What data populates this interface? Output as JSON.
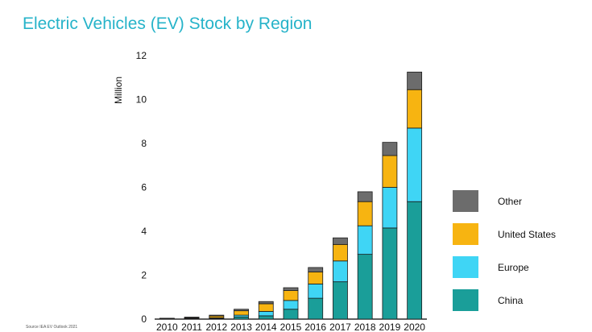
{
  "title": "Electric Vehicles (EV) Stock by Region",
  "source": "Source IEA EV Outlook 2021",
  "colors": {
    "China": "#1a9e99",
    "Europe": "#3fd5f5",
    "United States": "#f7b411",
    "Other": "#6c6c6c"
  },
  "chart_data": {
    "type": "bar",
    "stacked": true,
    "categories": [
      "2010",
      "2011",
      "2012",
      "2013",
      "2014",
      "2015",
      "2016",
      "2017",
      "2018",
      "2019",
      "2020"
    ],
    "series": [
      {
        "name": "China",
        "values": [
          0.01,
          0.02,
          0.03,
          0.1,
          0.15,
          0.45,
          0.95,
          1.7,
          2.95,
          4.15,
          5.35
        ]
      },
      {
        "name": "Europe",
        "values": [
          0.01,
          0.02,
          0.03,
          0.08,
          0.2,
          0.4,
          0.65,
          0.95,
          1.3,
          1.85,
          3.35
        ]
      },
      {
        "name": "United States",
        "values": [
          0.01,
          0.03,
          0.08,
          0.2,
          0.35,
          0.45,
          0.55,
          0.75,
          1.1,
          1.45,
          1.75
        ]
      },
      {
        "name": "Other",
        "values": [
          0.01,
          0.02,
          0.04,
          0.07,
          0.1,
          0.13,
          0.2,
          0.3,
          0.45,
          0.6,
          0.8
        ]
      }
    ],
    "title": "Electric Vehicles (EV) Stock by Region",
    "xlabel": "",
    "ylabel": "Million",
    "ylim": [
      0,
      12
    ],
    "yticks": [
      0,
      2,
      4,
      6,
      8,
      10,
      12
    ],
    "legend_order": [
      "Other",
      "United States",
      "Europe",
      "China"
    ],
    "legend_position": "right",
    "grid": false
  }
}
